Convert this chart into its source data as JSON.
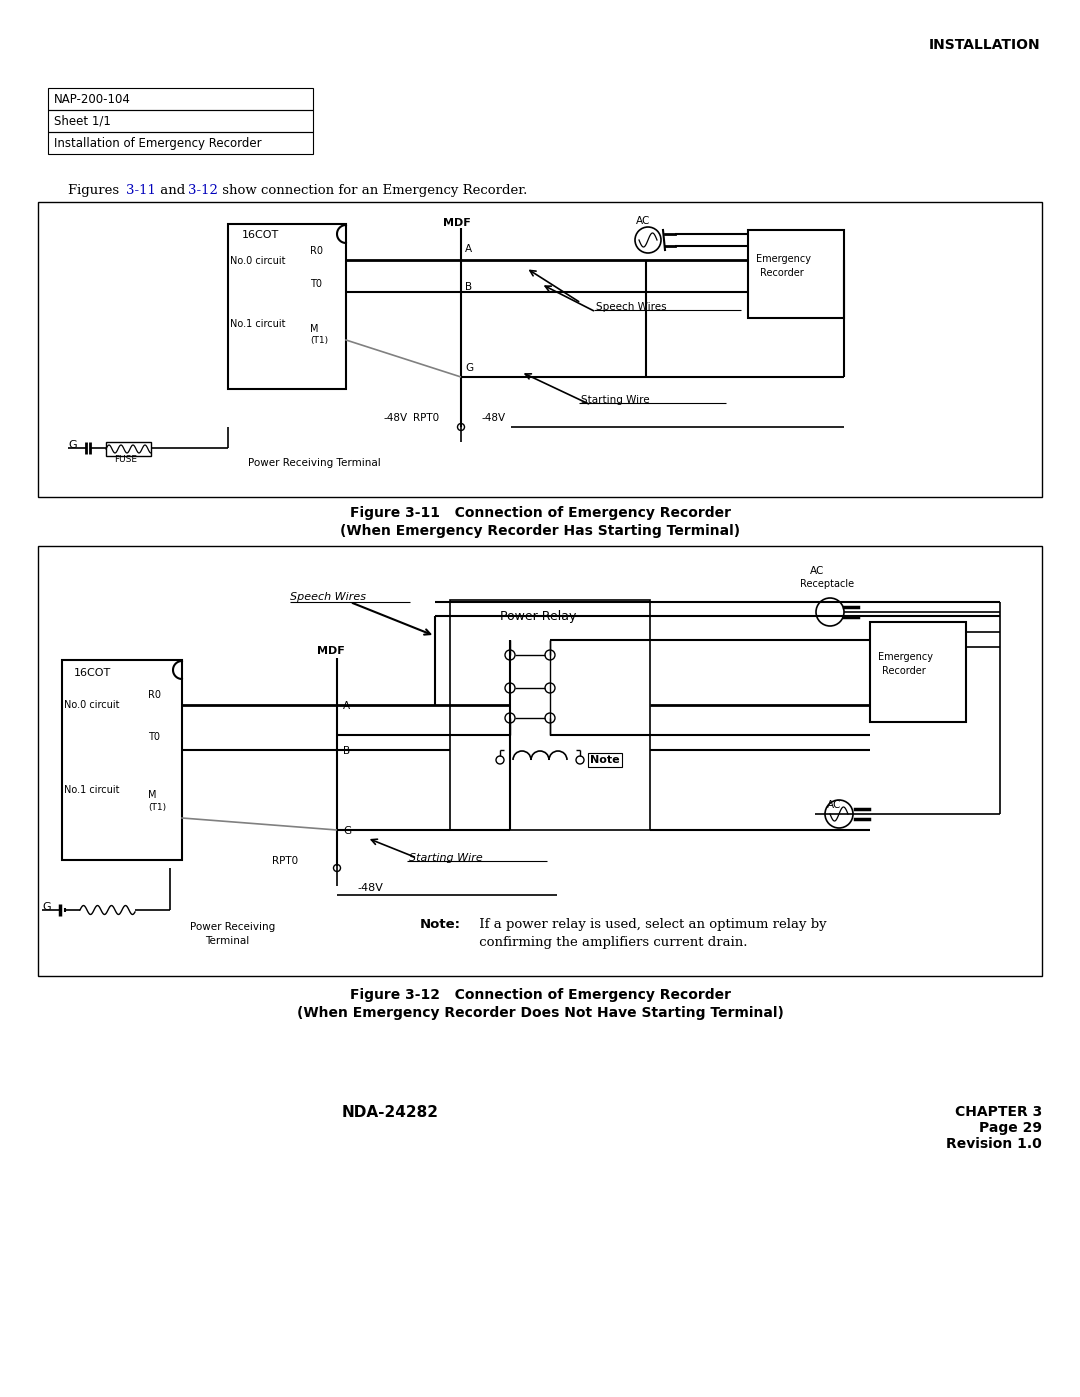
{
  "page_title": "INSTALLATION",
  "header_rows": [
    "NAP-200-104",
    "Sheet 1/1",
    "Installation of Emergency Recorder"
  ],
  "footer_center": "NDA-24282",
  "footer_right_line1": "CHAPTER 3",
  "footer_right_line2": "Page 29",
  "footer_right_line3": "Revision 1.0",
  "fig1_caption_line1": "Figure 3-11   Connection of Emergency Recorder",
  "fig1_caption_line2": "(When Emergency Recorder Has Starting Terminal)",
  "fig2_caption_line1": "Figure 3-12   Connection of Emergency Recorder",
  "fig2_caption_line2": "(When Emergency Recorder Does Not Have Starting Terminal)",
  "bg_color": "#ffffff",
  "blue_color": "#0000bb"
}
